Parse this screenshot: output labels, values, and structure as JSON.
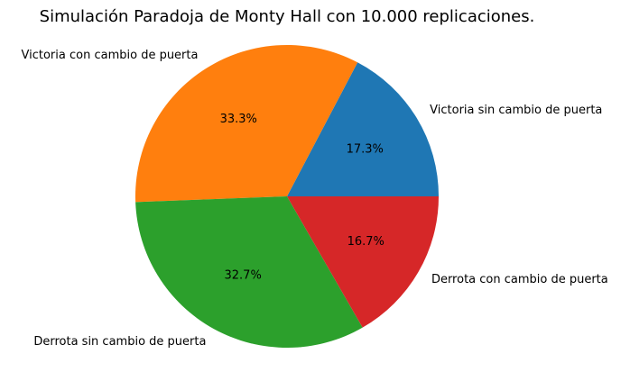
{
  "chart_data": {
    "type": "pie",
    "title": "Simulación Paradoja de Monty Hall con 10.000 replicaciones.",
    "slices": [
      {
        "label": "Victoria sin cambio de puerta",
        "value": 17.3,
        "pct_label": "17.3%",
        "color": "#1f77b4"
      },
      {
        "label": "Victoria con cambio de puerta",
        "value": 33.3,
        "pct_label": "33.3%",
        "color": "#ff7f0e"
      },
      {
        "label": "Derrota sin cambio de puerta",
        "value": 32.7,
        "pct_label": "32.7%",
        "color": "#2ca02c"
      },
      {
        "label": "Derrota con cambio de puerta",
        "value": 16.7,
        "pct_label": "16.7%",
        "color": "#d62728"
      }
    ],
    "start_angle_deg": 0,
    "direction": "counterclockwise",
    "legend": "none"
  }
}
